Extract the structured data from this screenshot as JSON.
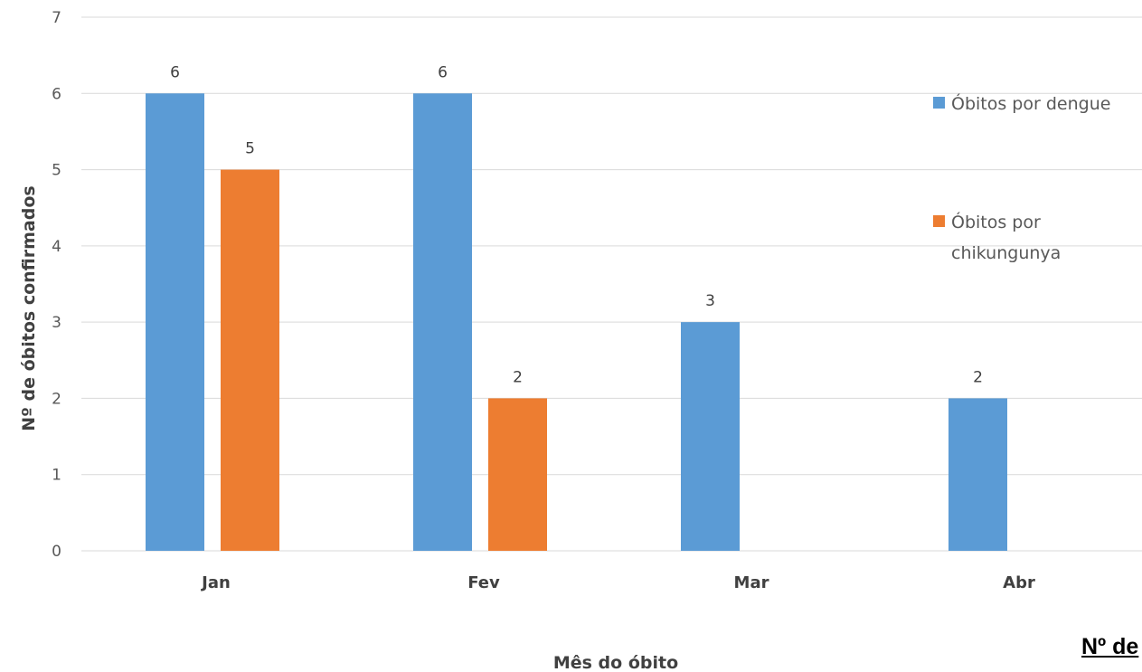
{
  "chart_data": {
    "type": "bar",
    "categories": [
      "Jan",
      "Fev",
      "Mar",
      "Abr"
    ],
    "series": [
      {
        "name": "Óbitos por dengue",
        "values": [
          6,
          6,
          3,
          2
        ],
        "labels": [
          "6",
          "6",
          "3",
          "2"
        ],
        "color": "#5B9BD5"
      },
      {
        "name": "Óbitos por chikungunya",
        "legend_lines": [
          "Óbitos por",
          "chikungunya"
        ],
        "values": [
          5,
          2,
          null,
          null
        ],
        "labels": [
          "5",
          "2",
          "",
          ""
        ],
        "color": "#ED7D31"
      }
    ],
    "xlabel": "Mês do óbito",
    "ylabel": "Nº de óbitos confirmados",
    "ylim": [
      0,
      7
    ],
    "yticks": [
      "0",
      "1",
      "2",
      "3",
      "4",
      "5",
      "6",
      "7"
    ],
    "grid": true,
    "legend": "right"
  },
  "clipped_text": "Nº de"
}
